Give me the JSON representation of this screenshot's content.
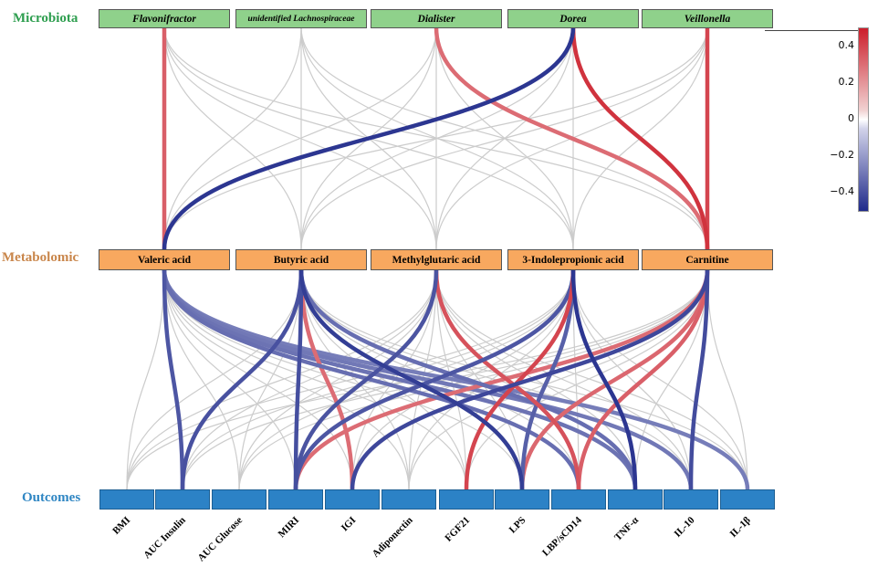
{
  "rows": {
    "microbiota": "Microbiota",
    "metabolomic": "Metabolomic",
    "outcomes": "Outcomes"
  },
  "colors": {
    "microbiota_label": "#2e9e4f",
    "metabolomic_label": "#c9864b",
    "outcomes_label": "#2f86c3",
    "positive": "#cc1e2b",
    "negative": "#1f2a8a",
    "neutral": "#cccccc"
  },
  "microbiota": [
    "Flavonifractor",
    "unidentified Lachnospiraceae",
    "Dialister",
    "Dorea",
    "Veillonella"
  ],
  "metabolites": [
    "Valeric acid",
    "Butyric acid",
    "Methylglutaric acid",
    "3-Indolepropionic acid",
    "Carnitine"
  ],
  "outcomes": [
    "BMI",
    "AUC Insulin",
    "AUC Glucose",
    "MIRI",
    "IGI",
    "Adiponectin",
    "FGF21",
    "LPS",
    "LBP/sCD14",
    "TNF-α",
    "IL-10",
    "IL-1β"
  ],
  "colorbar": {
    "ticks": [
      "0.4",
      "0.2",
      "0",
      "−0.2",
      "−0.4"
    ],
    "range": [
      -0.5,
      0.5
    ],
    "tick_values": [
      0.4,
      0.2,
      0,
      -0.2,
      -0.4
    ]
  },
  "links_micro_metab": [
    {
      "from": 0,
      "to": 0,
      "r": 0.25
    },
    {
      "from": 2,
      "to": 4,
      "r": 0.2
    },
    {
      "from": 3,
      "to": 0,
      "r": -0.45
    },
    {
      "from": 3,
      "to": 4,
      "r": 0.42
    },
    {
      "from": 4,
      "to": 4,
      "r": 0.35
    }
  ],
  "links_metab_out": [
    {
      "from": 0,
      "to": 1,
      "r": -0.32
    },
    {
      "from": 0,
      "to": 8,
      "r": -0.22
    },
    {
      "from": 0,
      "to": 9,
      "r": -0.2
    },
    {
      "from": 0,
      "to": 10,
      "r": -0.18
    },
    {
      "from": 0,
      "to": 11,
      "r": -0.16
    },
    {
      "from": 1,
      "to": 1,
      "r": -0.34
    },
    {
      "from": 1,
      "to": 3,
      "r": -0.35
    },
    {
      "from": 1,
      "to": 4,
      "r": 0.2
    },
    {
      "from": 1,
      "to": 7,
      "r": -0.42
    },
    {
      "from": 1,
      "to": 9,
      "r": -0.22
    },
    {
      "from": 2,
      "to": 3,
      "r": -0.33
    },
    {
      "from": 2,
      "to": 8,
      "r": 0.3
    },
    {
      "from": 3,
      "to": 3,
      "r": -0.32
    },
    {
      "from": 3,
      "to": 6,
      "r": 0.35
    },
    {
      "from": 3,
      "to": 7,
      "r": -0.28
    },
    {
      "from": 3,
      "to": 9,
      "r": -0.45
    },
    {
      "from": 4,
      "to": 3,
      "r": 0.2
    },
    {
      "from": 4,
      "to": 4,
      "r": -0.38
    },
    {
      "from": 4,
      "to": 7,
      "r": 0.22
    },
    {
      "from": 4,
      "to": 8,
      "r": 0.25
    },
    {
      "from": 4,
      "to": 10,
      "r": -0.36
    }
  ]
}
